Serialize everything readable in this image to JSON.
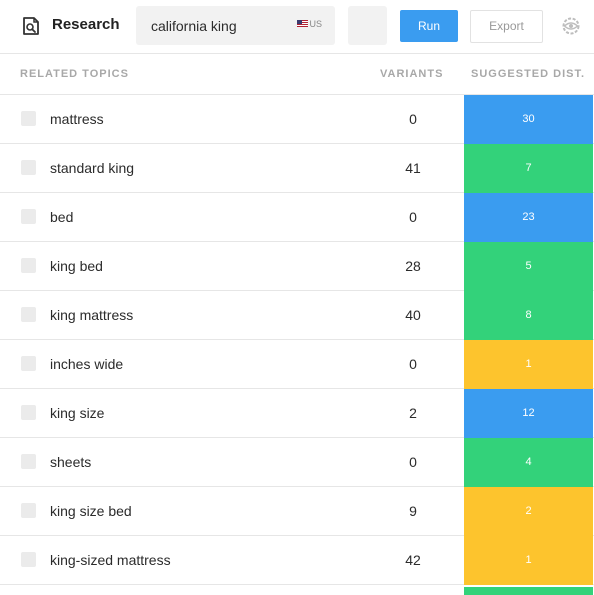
{
  "app": {
    "title": "Research"
  },
  "search": {
    "query": "california king",
    "locale": "US"
  },
  "buttons": {
    "run": "Run",
    "export": "Export"
  },
  "table": {
    "headers": {
      "topic": "RELATED TOPICS",
      "variants": "VARIANTS",
      "dist": "SUGGESTED DIST."
    },
    "rows": [
      {
        "topic": "mattress",
        "variants": "0",
        "dist": "30",
        "color": "#3a9cf0"
      },
      {
        "topic": "standard king",
        "variants": "41",
        "dist": "7",
        "color": "#33d27a"
      },
      {
        "topic": "bed",
        "variants": "0",
        "dist": "23",
        "color": "#3a9cf0"
      },
      {
        "topic": "king bed",
        "variants": "28",
        "dist": "5",
        "color": "#33d27a"
      },
      {
        "topic": "king mattress",
        "variants": "40",
        "dist": "8",
        "color": "#33d27a"
      },
      {
        "topic": "inches wide",
        "variants": "0",
        "dist": "1",
        "color": "#fdc42d"
      },
      {
        "topic": "king size",
        "variants": "2",
        "dist": "12",
        "color": "#3a9cf0"
      },
      {
        "topic": "sheets",
        "variants": "0",
        "dist": "4",
        "color": "#33d27a"
      },
      {
        "topic": "king size bed",
        "variants": "9",
        "dist": "2",
        "color": "#fdc42d"
      },
      {
        "topic": "king-sized mattress",
        "variants": "42",
        "dist": "1",
        "color": "#fdc42d"
      }
    ]
  },
  "icons": {
    "logo": "search-document-icon",
    "settings": "eye-settings-icon",
    "flag": "us-flag-icon"
  }
}
